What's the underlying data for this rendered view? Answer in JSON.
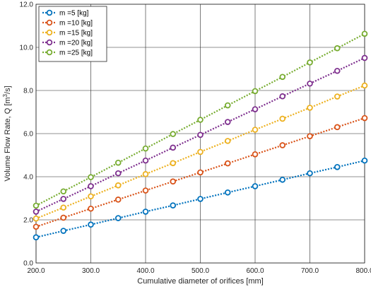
{
  "chart_data": {
    "type": "line",
    "xlabel": "Cumulative diameter of orifices [mm]",
    "ylabel": "Volume Flow Rate, Q [m",
    "ylabel_sup": "3",
    "ylabel_tail": "/s]",
    "xlim": [
      200,
      800
    ],
    "ylim": [
      0,
      12
    ],
    "grid": true,
    "legend_position": "top-left",
    "x": [
      200,
      250,
      300,
      350,
      400,
      450,
      500,
      550,
      600,
      650,
      700,
      750,
      800
    ],
    "xticks": [
      "200.0",
      "300.0",
      "400.0",
      "500.0",
      "600.0",
      "700.0",
      "800.0"
    ],
    "xtick_values": [
      200,
      300,
      400,
      500,
      600,
      700,
      800
    ],
    "yticks": [
      "0.0",
      "2.0",
      "4.0",
      "6.0",
      "8.0",
      "10.0",
      "12.0"
    ],
    "ytick_values": [
      0,
      2,
      4,
      6,
      8,
      10,
      12
    ],
    "series": [
      {
        "name": "m =5 [kg]",
        "color": "#0072BD",
        "values": [
          1.19,
          1.49,
          1.78,
          2.08,
          2.38,
          2.67,
          2.97,
          3.27,
          3.56,
          3.86,
          4.16,
          4.45,
          4.75
        ]
      },
      {
        "name": "m =10 [kg]",
        "color": "#D95319",
        "values": [
          1.68,
          2.1,
          2.52,
          2.94,
          3.36,
          3.78,
          4.2,
          4.62,
          5.04,
          5.46,
          5.88,
          6.3,
          6.72
        ]
      },
      {
        "name": "m =15 [kg]",
        "color": "#EDB120",
        "values": [
          2.06,
          2.57,
          3.09,
          3.6,
          4.12,
          4.63,
          5.15,
          5.66,
          6.18,
          6.69,
          7.2,
          7.72,
          8.23
        ]
      },
      {
        "name": "m =20 [kg]",
        "color": "#7E2F8E",
        "values": [
          2.38,
          2.97,
          3.56,
          4.16,
          4.75,
          5.35,
          5.94,
          6.54,
          7.13,
          7.73,
          8.32,
          8.91,
          9.51
        ]
      },
      {
        "name": "m =25 [kg]",
        "color": "#77AC30",
        "values": [
          2.66,
          3.32,
          3.98,
          4.65,
          5.31,
          5.98,
          6.64,
          7.31,
          7.97,
          8.63,
          9.3,
          9.96,
          10.63
        ]
      }
    ]
  }
}
